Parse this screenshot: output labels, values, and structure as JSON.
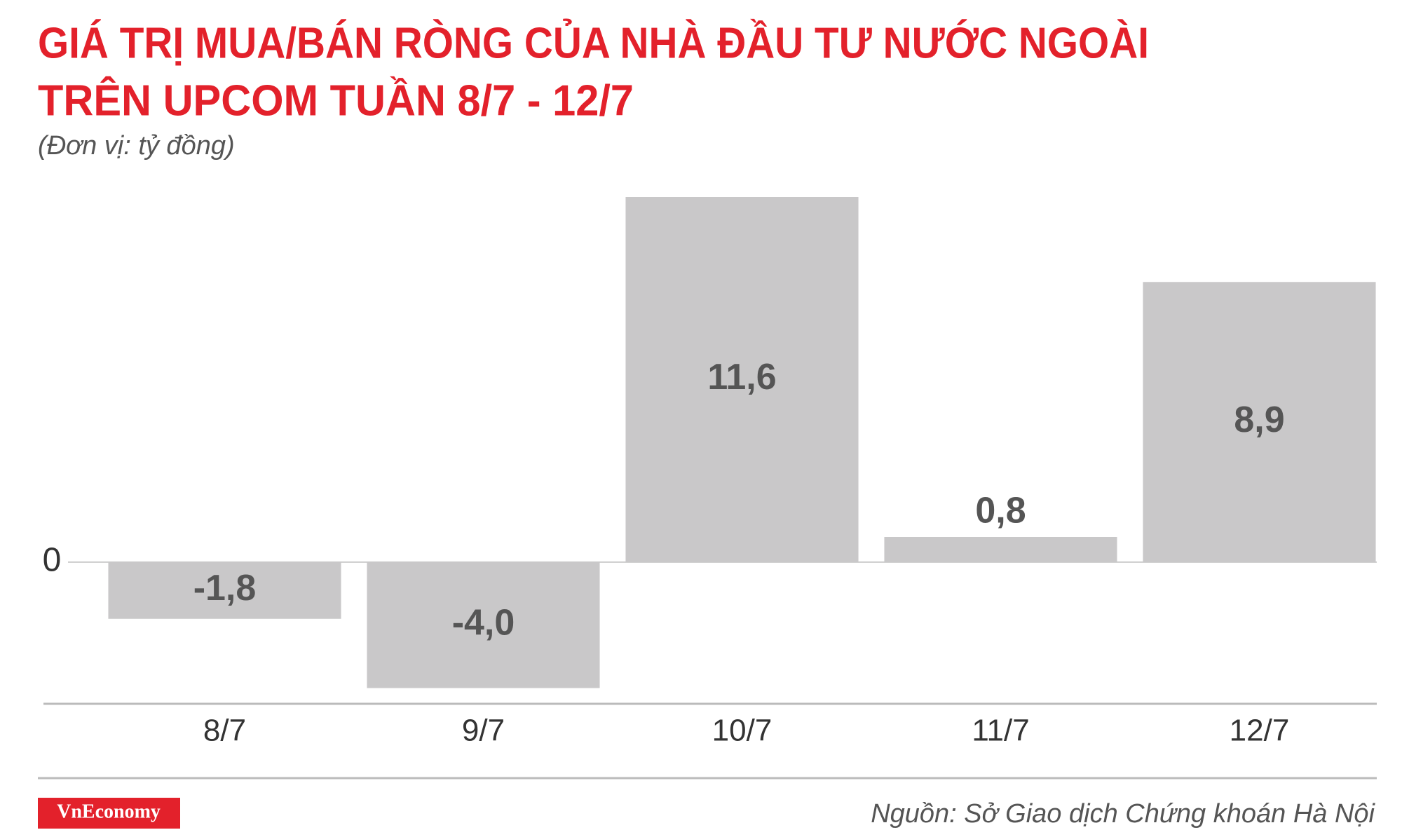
{
  "chart_data": {
    "type": "bar",
    "title": [
      "GIÁ TRỊ MUA/BÁN RÒNG CỦA NHÀ ĐẦU TƯ NƯỚC NGOÀI",
      "TRÊN UPCOM TUẦN 8/7 - 12/7"
    ],
    "subtitle": "(Đơn vị: tỷ đồng)",
    "categories": [
      "8/7",
      "9/7",
      "10/7",
      "11/7",
      "12/7"
    ],
    "values": [
      -1.8,
      -4.0,
      11.6,
      0.8,
      8.9
    ],
    "value_labels": [
      "-1,8",
      "-4,0",
      "11,6",
      "0,8",
      "8,9"
    ],
    "color": "#c9c8c9",
    "ylim": [
      -4.5,
      11.6
    ],
    "yticks": [
      0
    ],
    "source": "Nguồn: Sở Giao dịch Chứng khoán Hà Nội",
    "logo": "VnEconomy"
  }
}
